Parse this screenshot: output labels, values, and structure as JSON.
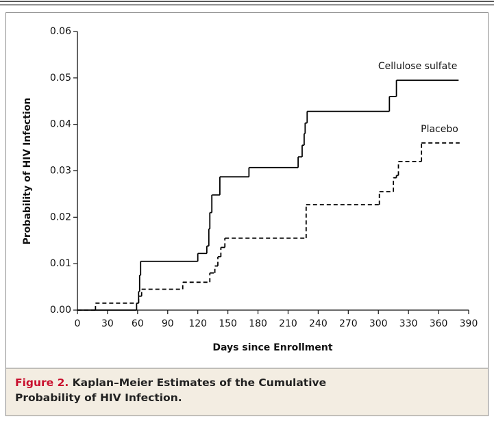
{
  "chart_data": {
    "type": "step",
    "caption_label": "Figure 2.",
    "caption": "Kaplan–Meier Estimates of the Cumulative Probability of HIV Infection.",
    "x_label": "Days since Enrollment",
    "y_label": "Probability of HIV Infection",
    "xlim": [
      0,
      390
    ],
    "xticks": [
      0,
      30,
      60,
      90,
      120,
      150,
      180,
      210,
      240,
      270,
      300,
      330,
      360,
      390
    ],
    "ylim": [
      0,
      0.06
    ],
    "yticks": [
      {
        "value": 0,
        "label": "0.00"
      },
      0.01,
      0.02,
      0.03,
      0.04,
      0.05,
      0.06
    ],
    "series": [
      {
        "name": "Cellulose sulfate",
        "color": "#000000",
        "dash": false,
        "x": [
          0,
          59,
          61,
          62,
          63,
          120,
          129,
          131,
          132,
          134,
          135,
          142,
          171,
          220,
          224,
          226,
          227,
          229,
          311,
          318,
          380
        ],
        "values": [
          0,
          0.0015,
          0.004,
          0.0075,
          0.0105,
          0.0122,
          0.0138,
          0.0175,
          0.021,
          0.0248,
          0.0248,
          0.0287,
          0.0307,
          0.033,
          0.0355,
          0.038,
          0.0403,
          0.0428,
          0.046,
          0.0495,
          0.0495
        ]
      },
      {
        "name": "Placebo",
        "color": "#000000",
        "dash": true,
        "x": [
          0,
          18,
          59,
          61,
          64,
          105,
          132,
          137,
          140,
          143,
          147,
          228,
          301,
          315,
          318,
          320,
          343,
          381
        ],
        "values": [
          0,
          0.0015,
          0.0015,
          0.003,
          0.0045,
          0.006,
          0.008,
          0.0095,
          0.0115,
          0.0135,
          0.0155,
          0.0227,
          0.0255,
          0.0285,
          0.029,
          0.032,
          0.036,
          0.036
        ]
      }
    ]
  }
}
